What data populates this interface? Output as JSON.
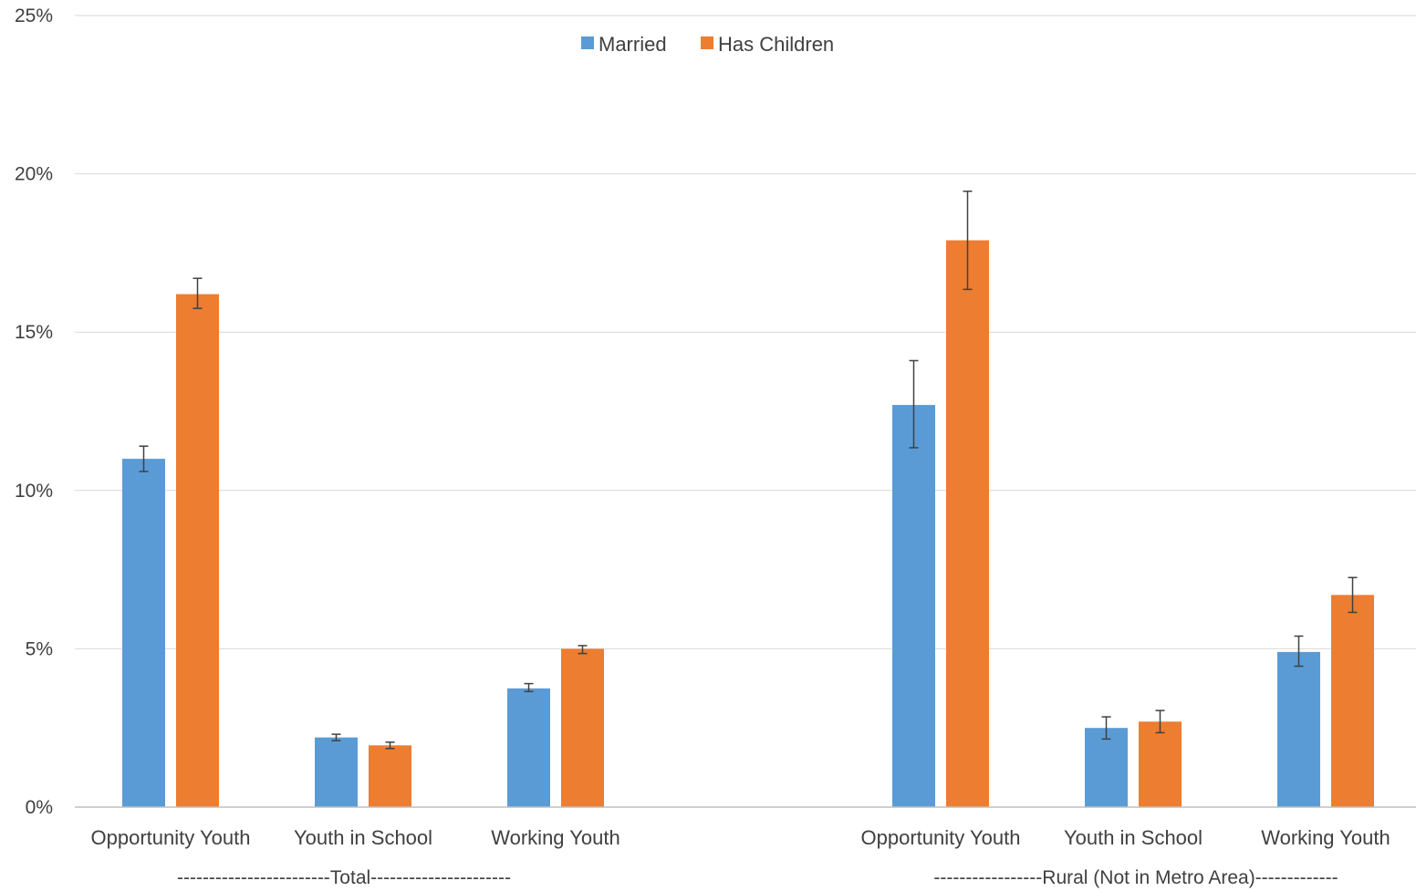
{
  "chart_data": {
    "type": "bar",
    "title": "",
    "xlabel": "",
    "ylabel": "",
    "ylim": [
      0,
      25
    ],
    "yticks": [
      "0%",
      "5%",
      "10%",
      "15%",
      "20%",
      "25%"
    ],
    "grid": true,
    "legend_position": "top-center",
    "groups": [
      {
        "label": "------------------------Total----------------------",
        "categories": [
          "Opportunity Youth",
          "Youth in School",
          "Working Youth"
        ]
      },
      {
        "label": "-----------------Rural (Not in Metro Area)-------------",
        "categories": [
          "Opportunity Youth",
          "Youth in School",
          "Working Youth"
        ]
      }
    ],
    "series": [
      {
        "name": "Married",
        "color": "#5b9bd5",
        "values": [
          11.0,
          2.2,
          3.75,
          12.7,
          2.5,
          4.9
        ],
        "error_low": [
          10.6,
          2.1,
          3.65,
          11.35,
          2.15,
          4.45
        ],
        "error_high": [
          11.4,
          2.3,
          3.9,
          14.1,
          2.85,
          5.4
        ]
      },
      {
        "name": "Has Children",
        "color": "#ed7d31",
        "values": [
          16.2,
          1.95,
          5.0,
          17.9,
          2.7,
          6.7
        ],
        "error_low": [
          15.75,
          1.85,
          4.85,
          16.35,
          2.35,
          6.15
        ],
        "error_high": [
          16.7,
          2.05,
          5.1,
          19.45,
          3.05,
          7.25
        ]
      }
    ]
  }
}
